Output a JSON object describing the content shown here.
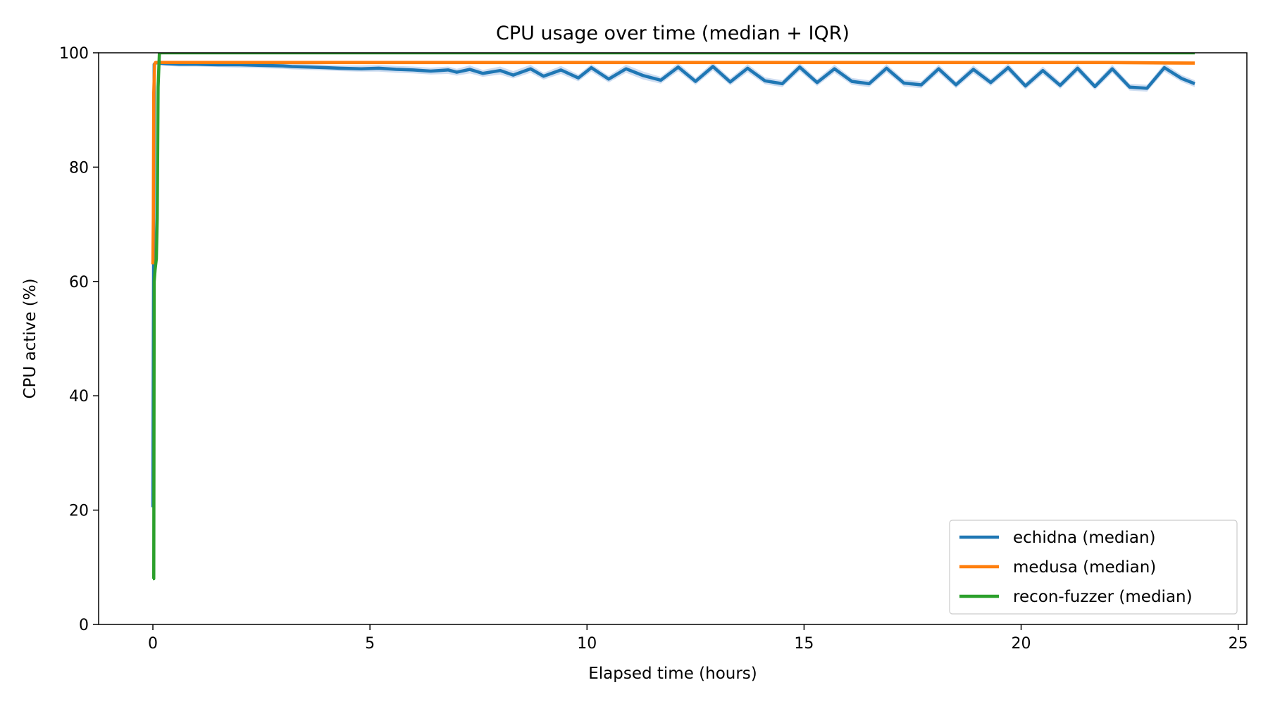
{
  "chart_data": {
    "type": "line",
    "title": "CPU usage over time (median + IQR)",
    "xlabel": "Elapsed time (hours)",
    "ylabel": "CPU active (%)",
    "xlim": [
      -1.25,
      25.2
    ],
    "ylim": [
      0,
      100
    ],
    "xticks": [
      0,
      5,
      10,
      15,
      20,
      25
    ],
    "yticks": [
      0,
      20,
      40,
      60,
      80,
      100
    ],
    "grid": false,
    "legend_position": "lower-right",
    "series": [
      {
        "name": "echidna (median)",
        "color": "#1f77b4",
        "band_color": "#aec7e8",
        "x": [
          0,
          0.03,
          0.08,
          0.15,
          0.3,
          0.6,
          1.0,
          1.5,
          2.0,
          2.5,
          3.0,
          3.2,
          3.6,
          4.0,
          4.3,
          4.8,
          5.2,
          5.6,
          6.0,
          6.4,
          6.8,
          7.0,
          7.3,
          7.6,
          8.0,
          8.3,
          8.7,
          9.0,
          9.4,
          9.8,
          10.1,
          10.5,
          10.9,
          11.3,
          11.7,
          12.1,
          12.5,
          12.9,
          13.3,
          13.7,
          14.1,
          14.5,
          14.9,
          15.3,
          15.7,
          16.1,
          16.5,
          16.9,
          17.3,
          17.7,
          18.1,
          18.5,
          18.9,
          19.3,
          19.7,
          20.1,
          20.5,
          20.9,
          21.3,
          21.7,
          22.1,
          22.5,
          22.9,
          23.3,
          23.7,
          24.0
        ],
        "values": [
          20.5,
          98.0,
          98.3,
          98.2,
          98.1,
          98.0,
          98.0,
          97.9,
          97.9,
          97.8,
          97.7,
          97.6,
          97.5,
          97.4,
          97.3,
          97.2,
          97.3,
          97.1,
          97.0,
          96.8,
          97.0,
          96.6,
          97.1,
          96.4,
          96.9,
          96.1,
          97.2,
          95.9,
          97.0,
          95.6,
          97.4,
          95.4,
          97.2,
          96.0,
          95.2,
          97.5,
          95.0,
          97.6,
          94.9,
          97.3,
          95.1,
          94.6,
          97.5,
          94.8,
          97.2,
          95.0,
          94.6,
          97.3,
          94.7,
          94.4,
          97.2,
          94.4,
          97.1,
          94.8,
          97.4,
          94.2,
          96.9,
          94.3,
          97.3,
          94.1,
          97.2,
          94.0,
          93.8,
          97.4,
          95.5,
          94.6
        ],
        "iqr_low": [
          20.0,
          97.6,
          97.9,
          97.8,
          97.7,
          97.6,
          97.6,
          97.5,
          97.4,
          97.3,
          97.2,
          97.1,
          97.0,
          96.9,
          96.8,
          96.7,
          96.7,
          96.5,
          96.4,
          96.2,
          96.3,
          96.0,
          96.4,
          95.8,
          96.2,
          95.5,
          96.5,
          95.3,
          96.3,
          95.0,
          96.7,
          94.8,
          96.5,
          95.3,
          94.6,
          96.8,
          94.4,
          96.9,
          94.3,
          96.6,
          94.5,
          94.0,
          96.8,
          94.2,
          96.5,
          94.4,
          94.0,
          96.6,
          94.1,
          93.8,
          96.5,
          93.8,
          96.4,
          94.2,
          96.7,
          93.6,
          96.2,
          93.7,
          96.6,
          93.5,
          96.5,
          93.4,
          93.2,
          96.7,
          94.9,
          94.0
        ],
        "iqr_high": [
          21.0,
          98.4,
          98.6,
          98.6,
          98.5,
          98.4,
          98.4,
          98.3,
          98.3,
          98.2,
          98.2,
          98.1,
          98.0,
          97.9,
          97.8,
          97.8,
          97.9,
          97.7,
          97.6,
          97.4,
          97.6,
          97.2,
          97.8,
          97.0,
          97.6,
          96.8,
          97.9,
          96.5,
          97.7,
          96.2,
          98.0,
          96.0,
          97.9,
          96.7,
          95.8,
          98.2,
          95.6,
          98.3,
          95.5,
          98.0,
          95.7,
          95.2,
          98.2,
          95.4,
          97.9,
          95.6,
          95.2,
          98.0,
          95.3,
          95.0,
          97.9,
          95.0,
          97.8,
          95.4,
          98.1,
          94.8,
          97.6,
          94.9,
          98.0,
          94.7,
          97.9,
          94.6,
          94.4,
          98.1,
          96.1,
          95.2
        ]
      },
      {
        "name": "medusa (median)",
        "color": "#ff7f0e",
        "band_color": "#ffbb78",
        "x": [
          0,
          0.01,
          0.02,
          0.04,
          0.06,
          0.1,
          0.5,
          2.0,
          4.0,
          6.0,
          8.0,
          10.0,
          12.0,
          14.0,
          16.0,
          18.0,
          20.0,
          22.0,
          24.0
        ],
        "values": [
          63.0,
          71.0,
          93.0,
          98.0,
          98.3,
          98.3,
          98.3,
          98.3,
          98.3,
          98.3,
          98.3,
          98.3,
          98.3,
          98.3,
          98.3,
          98.3,
          98.3,
          98.3,
          98.2
        ],
        "iqr_low": [
          62.0,
          70.0,
          92.0,
          97.8,
          98.0,
          98.0,
          98.0,
          98.0,
          98.0,
          98.0,
          98.0,
          98.0,
          98.0,
          98.0,
          98.0,
          98.0,
          98.0,
          98.0,
          97.9
        ],
        "iqr_high": [
          64.0,
          72.0,
          94.0,
          98.3,
          98.6,
          98.6,
          98.6,
          98.6,
          98.6,
          98.6,
          98.6,
          98.6,
          98.6,
          98.6,
          98.6,
          98.6,
          98.6,
          98.6,
          98.5
        ]
      },
      {
        "name": "recon-fuzzer (median)",
        "color": "#2ca02c",
        "band_color": "#98df8a",
        "x": [
          0,
          0.02,
          0.03,
          0.05,
          0.08,
          0.1,
          0.12,
          0.15,
          0.2,
          0.5,
          2.0,
          6.0,
          12.0,
          18.0,
          24.0
        ],
        "values": [
          8.0,
          8.0,
          60.0,
          62.0,
          64.0,
          71.0,
          94.0,
          100.0,
          100.0,
          100.0,
          100.0,
          100.0,
          100.0,
          100.0,
          100.0
        ],
        "iqr_low": [
          7.8,
          7.8,
          59.0,
          61.0,
          63.0,
          70.0,
          93.0,
          99.8,
          99.8,
          99.8,
          99.8,
          99.8,
          99.8,
          99.8,
          99.8
        ],
        "iqr_high": [
          8.2,
          8.2,
          61.0,
          63.0,
          65.0,
          72.0,
          95.0,
          100.0,
          100.0,
          100.0,
          100.0,
          100.0,
          100.0,
          100.0,
          100.0
        ]
      }
    ]
  }
}
